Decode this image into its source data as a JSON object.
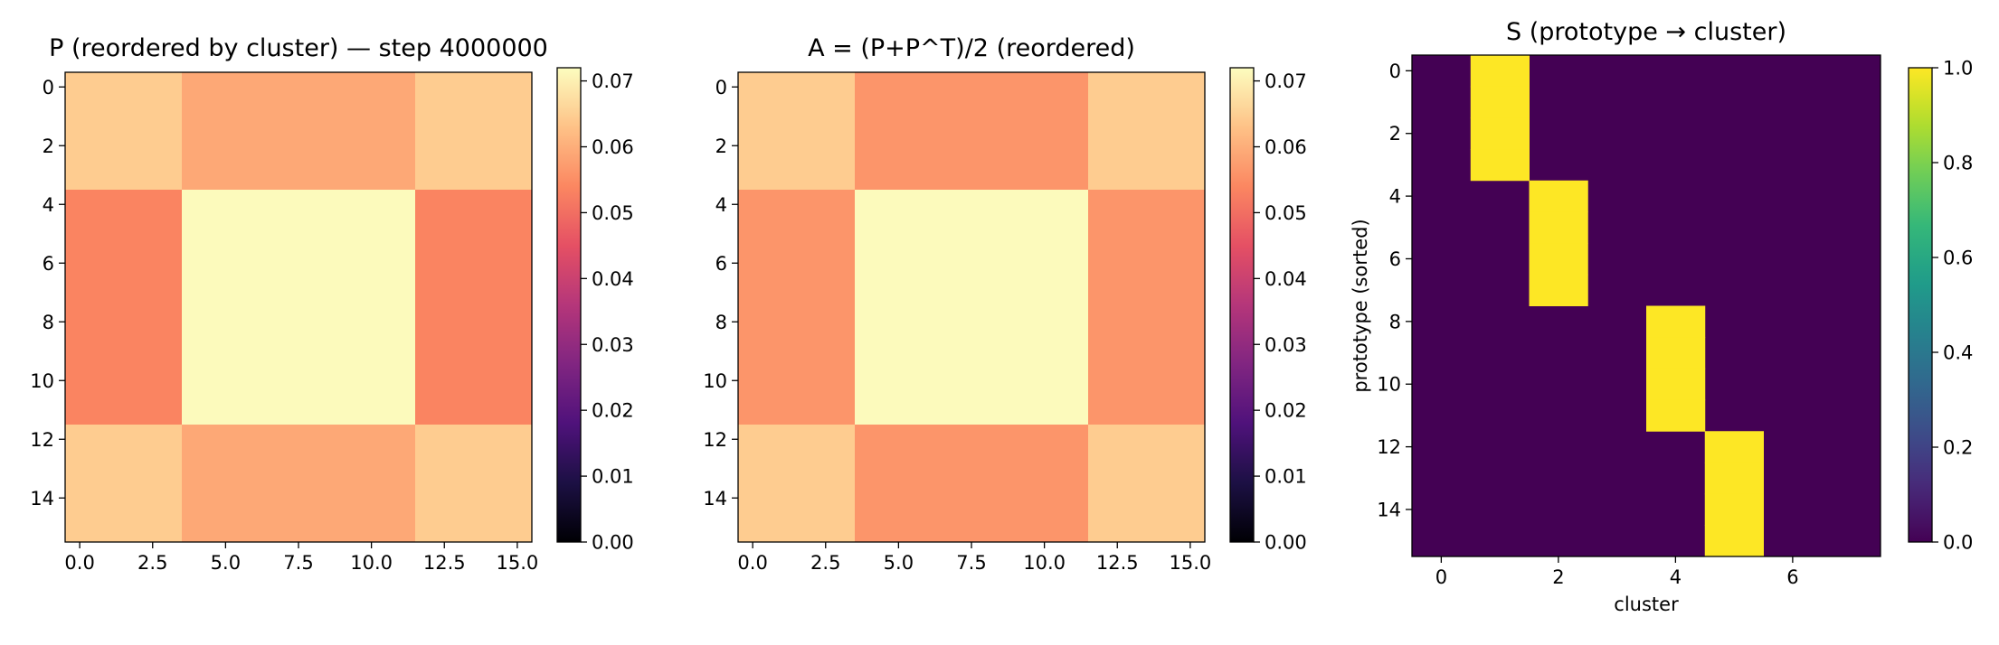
{
  "figure": {},
  "chart_data": [
    {
      "type": "heatmap",
      "title": "P (reordered by cluster) — step 4000000",
      "colormap": "magma",
      "n_rows": 16,
      "n_cols": 16,
      "block_boundaries": [
        4,
        12
      ],
      "block_values": [
        [
          0.0645,
          0.059,
          0.0645
        ],
        [
          0.0535,
          0.0715,
          0.0535
        ],
        [
          0.0645,
          0.059,
          0.0645
        ]
      ],
      "xticks": [
        "0.0",
        "2.5",
        "5.0",
        "7.5",
        "10.0",
        "12.5",
        "15.0"
      ],
      "xtick_values": [
        0,
        2.5,
        5,
        7.5,
        10,
        12.5,
        15
      ],
      "yticks": [
        "0",
        "2",
        "4",
        "6",
        "8",
        "10",
        "12",
        "14"
      ],
      "ytick_values": [
        0,
        2,
        4,
        6,
        8,
        10,
        12,
        14
      ],
      "colorbar": {
        "vmin": 0.0,
        "vmax": 0.072,
        "ticks": [
          "0.00",
          "0.01",
          "0.02",
          "0.03",
          "0.04",
          "0.05",
          "0.06",
          "0.07"
        ],
        "tick_values": [
          0,
          0.01,
          0.02,
          0.03,
          0.04,
          0.05,
          0.06,
          0.07
        ]
      },
      "xlabel": "",
      "ylabel": ""
    },
    {
      "type": "heatmap",
      "title": "A = (P+P^T)/2 (reordered)",
      "colormap": "magma",
      "n_rows": 16,
      "n_cols": 16,
      "block_boundaries": [
        4,
        12
      ],
      "block_values": [
        [
          0.0645,
          0.0562,
          0.0645
        ],
        [
          0.0562,
          0.0715,
          0.0562
        ],
        [
          0.0645,
          0.0562,
          0.0645
        ]
      ],
      "xticks": [
        "0.0",
        "2.5",
        "5.0",
        "7.5",
        "10.0",
        "12.5",
        "15.0"
      ],
      "xtick_values": [
        0,
        2.5,
        5,
        7.5,
        10,
        12.5,
        15
      ],
      "yticks": [
        "0",
        "2",
        "4",
        "6",
        "8",
        "10",
        "12",
        "14"
      ],
      "ytick_values": [
        0,
        2,
        4,
        6,
        8,
        10,
        12,
        14
      ],
      "colorbar": {
        "vmin": 0.0,
        "vmax": 0.072,
        "ticks": [
          "0.00",
          "0.01",
          "0.02",
          "0.03",
          "0.04",
          "0.05",
          "0.06",
          "0.07"
        ],
        "tick_values": [
          0,
          0.01,
          0.02,
          0.03,
          0.04,
          0.05,
          0.06,
          0.07
        ]
      },
      "xlabel": "",
      "ylabel": ""
    },
    {
      "type": "heatmap",
      "title": "S (prototype → cluster)",
      "colormap": "viridis",
      "n_rows": 16,
      "n_cols": 8,
      "assignment": [
        1,
        1,
        1,
        1,
        2,
        2,
        2,
        2,
        4,
        4,
        4,
        4,
        5,
        5,
        5,
        5
      ],
      "xticks": [
        "0",
        "2",
        "4",
        "6"
      ],
      "xtick_values": [
        0,
        2,
        4,
        6
      ],
      "yticks": [
        "0",
        "2",
        "4",
        "6",
        "8",
        "10",
        "12",
        "14"
      ],
      "ytick_values": [
        0,
        2,
        4,
        6,
        8,
        10,
        12,
        14
      ],
      "colorbar": {
        "vmin": 0.0,
        "vmax": 1.0,
        "ticks": [
          "0.0",
          "0.2",
          "0.4",
          "0.6",
          "0.8",
          "1.0"
        ],
        "tick_values": [
          0,
          0.2,
          0.4,
          0.6,
          0.8,
          1.0
        ]
      },
      "xlabel": "cluster",
      "ylabel": "prototype (sorted)"
    }
  ]
}
